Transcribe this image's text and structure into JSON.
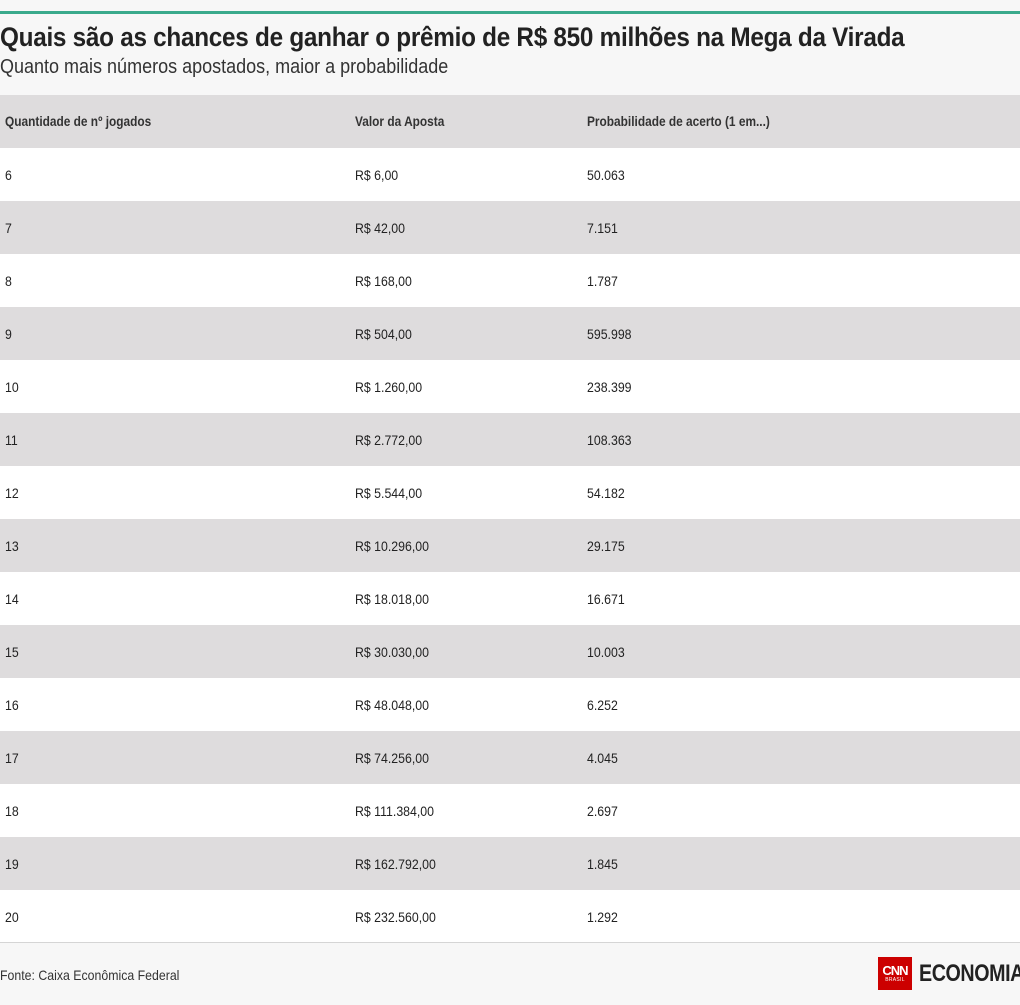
{
  "header": {
    "title": "Quais são as chances de ganhar o prêmio de R$ 850 milhões na Mega da Virada",
    "subtitle": "Quanto mais números apostados, maior a probabilidade"
  },
  "chart_data": {
    "type": "table",
    "columns": [
      "Quantidade de nº jogados",
      "Valor da Aposta",
      "Probabilidade de acerto (1 em...)"
    ],
    "rows": [
      [
        "6",
        "R$ 6,00",
        "50.063"
      ],
      [
        "7",
        "R$ 42,00",
        "7.151"
      ],
      [
        "8",
        "R$ 168,00",
        "1.787"
      ],
      [
        "9",
        "R$ 504,00",
        "595.998"
      ],
      [
        "10",
        "R$ 1.260,00",
        "238.399"
      ],
      [
        "11",
        "R$ 2.772,00",
        "108.363"
      ],
      [
        "12",
        "R$ 5.544,00",
        "54.182"
      ],
      [
        "13",
        "R$ 10.296,00",
        "29.175"
      ],
      [
        "14",
        "R$ 18.018,00",
        "16.671"
      ],
      [
        "15",
        "R$ 30.030,00",
        "10.003"
      ],
      [
        "16",
        "R$ 48.048,00",
        "6.252"
      ],
      [
        "17",
        "R$ 74.256,00",
        "4.045"
      ],
      [
        "18",
        "R$ 111.384,00",
        "2.697"
      ],
      [
        "19",
        "R$ 162.792,00",
        "1.845"
      ],
      [
        "20",
        "R$ 232.560,00",
        "1.292"
      ]
    ]
  },
  "footer": {
    "source": "Fonte: Caixa Econômica Federal",
    "logo": {
      "cnn": "CNN",
      "brasil": "BRASIL",
      "word": "ECONOMIA"
    }
  },
  "colors": {
    "accent_rule": "#3aaa8c",
    "header_row_bg": "#dedcdd",
    "stripe_bg": "#dedcdd",
    "logo_red": "#cc0000"
  }
}
